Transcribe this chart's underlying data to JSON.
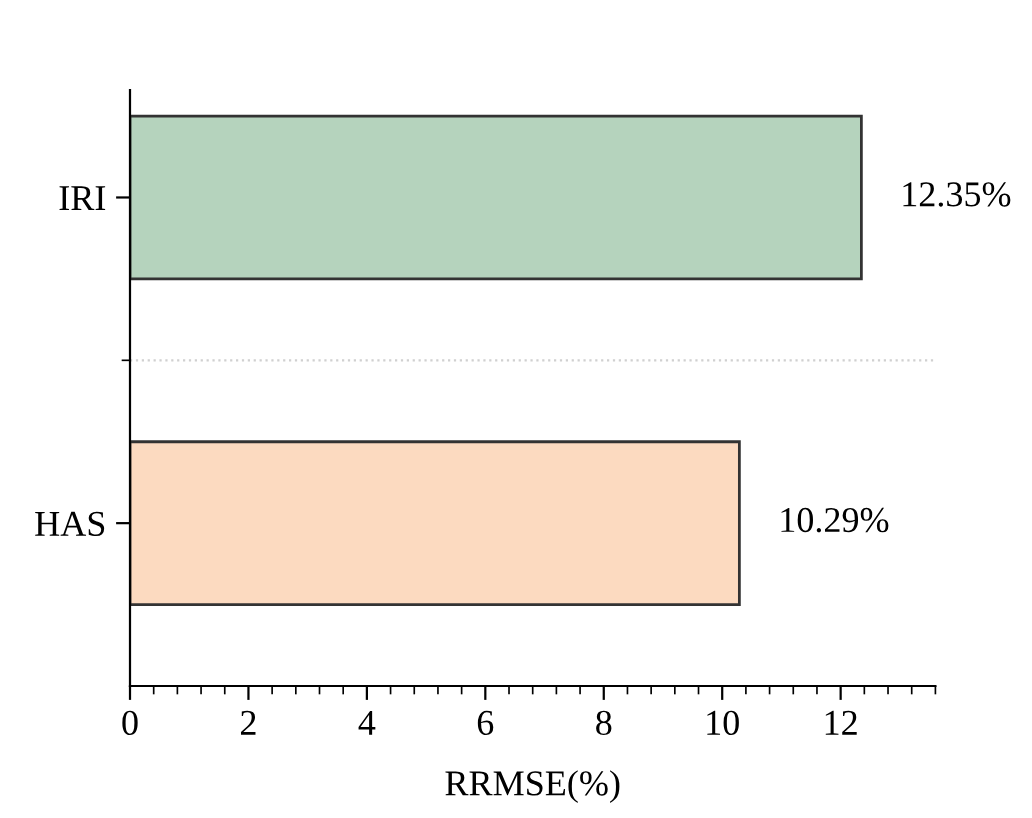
{
  "chart_data": {
    "type": "bar",
    "orientation": "horizontal",
    "xlabel": "RRMSE(%)",
    "categories": [
      "IRI",
      "HAS"
    ],
    "values": [
      12.35,
      10.29
    ],
    "colors": [
      "#b5d3bd",
      "#fcdac0"
    ],
    "value_labels": [
      "12.35%",
      "10.29%"
    ],
    "xlim": [
      0,
      13.6
    ],
    "xticks": [
      0,
      2,
      4,
      6,
      8,
      10,
      12
    ],
    "grid": false
  }
}
